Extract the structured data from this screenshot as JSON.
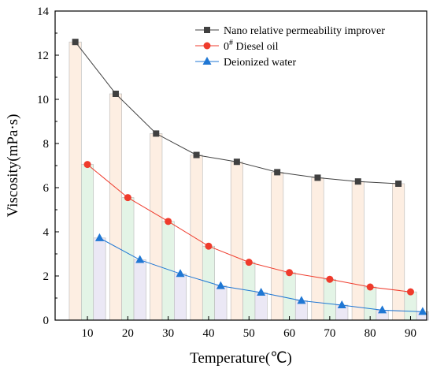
{
  "chart_data": {
    "type": "line",
    "xlabel": "Temperature(℃)",
    "ylabel": "Viscosity(mPa·s)",
    "xlim": [
      2,
      94
    ],
    "ylim": [
      0,
      14
    ],
    "x_ticks": [
      10,
      20,
      30,
      40,
      50,
      60,
      70,
      80,
      90
    ],
    "y_ticks": [
      0,
      2,
      4,
      6,
      8,
      10,
      12,
      14
    ],
    "legend_position": "top-right",
    "grid": false,
    "series": [
      {
        "name": "Nano relative permeability improver",
        "marker": "square",
        "color": "#404040",
        "bar_color": "#fdeee2",
        "x": [
          7,
          17,
          27,
          37,
          47,
          57,
          67,
          77,
          87
        ],
        "values": [
          12.6,
          10.25,
          8.45,
          7.48,
          7.17,
          6.7,
          6.45,
          6.28,
          6.18
        ]
      },
      {
        "name": "0# Diesel oil",
        "name_parts": {
          "base": "0",
          "sup": "#",
          "rest": " Diesel oil"
        },
        "marker": "circle",
        "color": "#ef3b2c",
        "bar_color": "#e3f4e6",
        "x": [
          10,
          20,
          30,
          40,
          50,
          60,
          70,
          80,
          90
        ],
        "values": [
          7.05,
          5.55,
          4.47,
          3.35,
          2.62,
          2.15,
          1.85,
          1.5,
          1.28
        ]
      },
      {
        "name": "Deionized water",
        "marker": "triangle",
        "color": "#1f77d4",
        "bar_color": "#ebe8f5",
        "x": [
          13,
          23,
          33,
          43,
          53,
          63,
          73,
          83,
          93
        ],
        "values": [
          3.72,
          2.73,
          2.1,
          1.55,
          1.25,
          0.88,
          0.68,
          0.45,
          0.38
        ]
      }
    ]
  }
}
